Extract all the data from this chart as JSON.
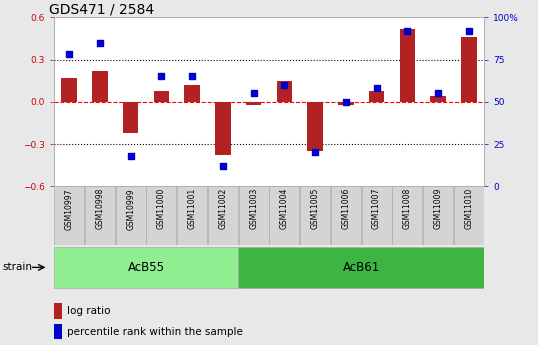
{
  "title": "GDS471 / 2584",
  "samples": [
    "GSM10997",
    "GSM10998",
    "GSM10999",
    "GSM11000",
    "GSM11001",
    "GSM11002",
    "GSM11003",
    "GSM11004",
    "GSM11005",
    "GSM11006",
    "GSM11007",
    "GSM11008",
    "GSM11009",
    "GSM11010"
  ],
  "log_ratio": [
    0.17,
    0.22,
    -0.22,
    0.08,
    0.12,
    -0.38,
    -0.02,
    0.15,
    -0.35,
    -0.02,
    0.08,
    0.52,
    0.04,
    0.46
  ],
  "percentile_rank": [
    78,
    85,
    18,
    65,
    65,
    12,
    55,
    60,
    20,
    50,
    58,
    92,
    55,
    92
  ],
  "ylim_left": [
    -0.6,
    0.6
  ],
  "ylim_right": [
    0,
    100
  ],
  "yticks_left": [
    -0.6,
    -0.3,
    0.0,
    0.3,
    0.6
  ],
  "yticks_right": [
    0,
    25,
    50,
    75,
    100
  ],
  "ytick_labels_right": [
    "0",
    "25",
    "50",
    "75",
    "100%"
  ],
  "strain_groups": [
    {
      "label": "AcB55",
      "start": 0,
      "end": 5,
      "color": "#90EE90"
    },
    {
      "label": "AcB61",
      "start": 6,
      "end": 13,
      "color": "#3CB543"
    }
  ],
  "bar_color": "#B22222",
  "dot_color": "#0000CD",
  "bar_width": 0.5,
  "dot_size": 25,
  "background_color": "#e8e8e8",
  "plot_bg_color": "#ffffff",
  "strain_label": "strain",
  "legend_log_ratio": "log ratio",
  "legend_percentile": "percentile rank within the sample",
  "title_fontsize": 10,
  "tick_fontsize": 6.5,
  "label_fontsize": 8
}
